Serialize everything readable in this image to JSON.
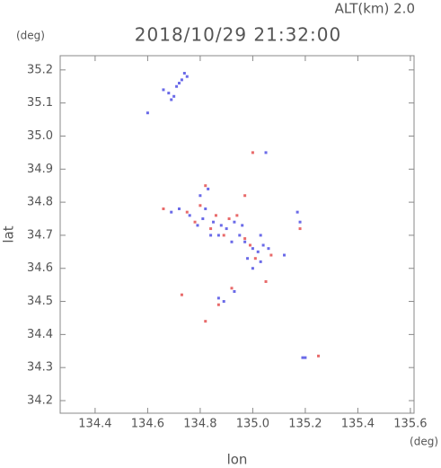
{
  "chart_data": {
    "type": "scatter",
    "title": "2018/10/29 21:32:00",
    "subtitle": "ALT(km) 2.0",
    "x_label": "lon",
    "y_label": "lat",
    "x_unit": "(deg)",
    "y_unit": "(deg)",
    "xlim": [
      134.267,
      135.614
    ],
    "ylim": [
      34.162,
      35.243
    ],
    "xticks": [
      134.4,
      134.6,
      134.8,
      {
        "value": 135,
        "label": "135.0"
      },
      135.2,
      135.4,
      135.6
    ],
    "yticks": [
      34.2,
      34.3,
      34.4,
      34.5,
      34.6,
      34.7,
      34.8,
      34.9,
      {
        "value": 35,
        "label": "35.0"
      },
      35.1,
      35.2
    ],
    "series": [
      {
        "color": "#6a6ae8",
        "x": [
          134.66,
          134.68,
          134.7,
          134.71,
          134.73,
          134.74,
          134.75,
          134.69,
          134.72,
          134.6,
          135.05,
          134.8,
          134.83,
          134.69,
          134.72,
          134.76,
          134.81,
          134.85,
          134.88,
          134.84,
          134.9,
          134.93,
          134.95,
          134.97,
          135.0,
          135.02,
          135.04,
          135.03,
          135.0,
          134.98,
          135.06,
          134.92,
          134.87,
          134.79,
          134.96,
          135.17,
          135.18,
          135.12,
          134.87,
          134.89,
          134.93,
          135.19,
          135.2,
          134.82,
          135.03
        ],
        "values": [
          35.14,
          35.13,
          35.12,
          35.15,
          35.17,
          35.19,
          35.18,
          35.11,
          35.16,
          35.07,
          34.95,
          34.82,
          34.84,
          34.77,
          34.78,
          34.76,
          34.75,
          34.74,
          34.73,
          34.7,
          34.72,
          34.74,
          34.7,
          34.68,
          34.66,
          34.65,
          34.67,
          34.62,
          34.6,
          34.63,
          34.66,
          34.68,
          34.7,
          34.73,
          34.73,
          34.77,
          34.74,
          34.64,
          34.51,
          34.5,
          34.53,
          34.33,
          34.33,
          34.78,
          34.7
        ]
      },
      {
        "color": "#e86a6a",
        "x": [
          134.66,
          134.75,
          134.78,
          134.82,
          134.97,
          135.0,
          134.86,
          134.91,
          134.94,
          134.89,
          134.97,
          135.01,
          135.05,
          134.73,
          134.87,
          134.92,
          134.82,
          135.25,
          135.18,
          134.84,
          134.99,
          134.8,
          135.07
        ],
        "values": [
          34.78,
          34.77,
          34.74,
          34.85,
          34.82,
          34.95,
          34.76,
          34.75,
          34.76,
          34.7,
          34.69,
          34.63,
          34.56,
          34.52,
          34.49,
          34.54,
          34.44,
          34.335,
          34.72,
          34.72,
          34.67,
          34.79,
          34.64
        ]
      }
    ]
  }
}
